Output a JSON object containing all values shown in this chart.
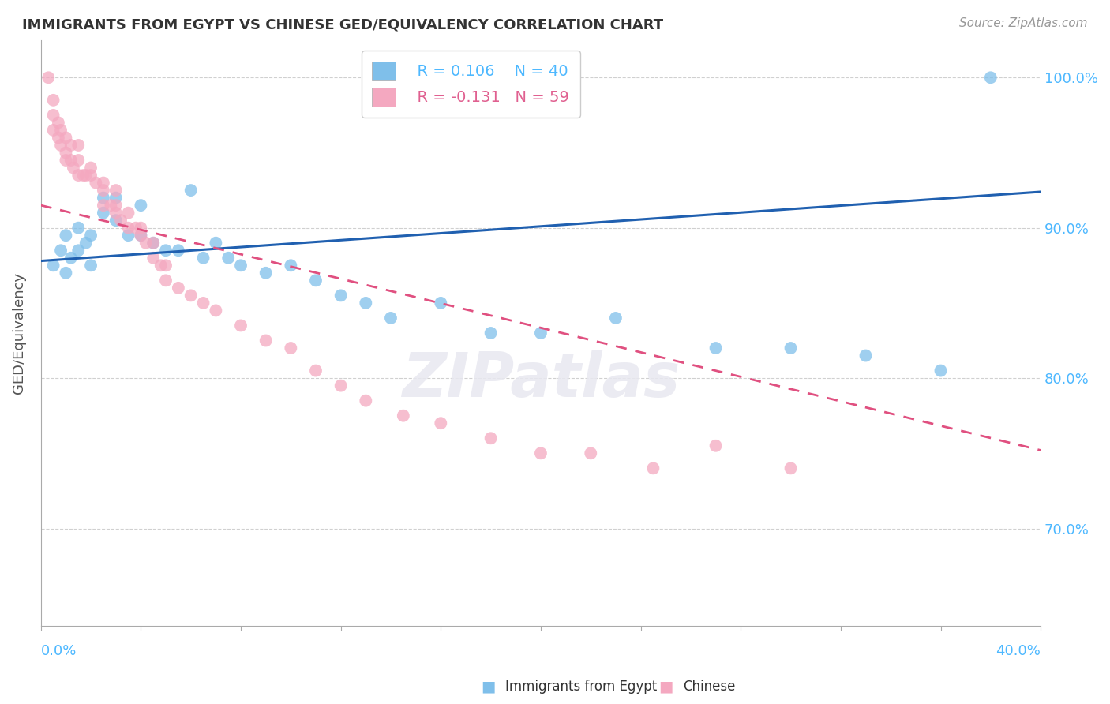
{
  "title": "IMMIGRANTS FROM EGYPT VS CHINESE GED/EQUIVALENCY CORRELATION CHART",
  "source": "Source: ZipAtlas.com",
  "ylabel": "GED/Equivalency",
  "legend_blue_r": "R = 0.106",
  "legend_blue_n": "N = 40",
  "legend_pink_r": "R = -0.131",
  "legend_pink_n": "N = 59",
  "legend_blue_label": "Immigrants from Egypt",
  "legend_pink_label": "Chinese",
  "xlim": [
    0.0,
    0.4
  ],
  "ylim": [
    0.635,
    1.025
  ],
  "yticks": [
    0.7,
    0.8,
    0.9,
    1.0
  ],
  "ytick_labels": [
    "70.0%",
    "80.0%",
    "90.0%",
    "100.0%"
  ],
  "blue_color": "#7fbfea",
  "pink_color": "#f4a8c0",
  "blue_line_color": "#2060b0",
  "pink_line_color": "#e05080",
  "background_color": "#ffffff",
  "grid_color": "#d0d0d0",
  "blue_scatter_x": [
    0.005,
    0.008,
    0.01,
    0.01,
    0.012,
    0.015,
    0.015,
    0.018,
    0.02,
    0.02,
    0.025,
    0.025,
    0.03,
    0.03,
    0.035,
    0.04,
    0.04,
    0.045,
    0.05,
    0.055,
    0.06,
    0.065,
    0.07,
    0.075,
    0.08,
    0.09,
    0.1,
    0.11,
    0.12,
    0.13,
    0.14,
    0.16,
    0.18,
    0.2,
    0.23,
    0.27,
    0.3,
    0.33,
    0.36,
    0.38
  ],
  "blue_scatter_y": [
    0.875,
    0.885,
    0.87,
    0.895,
    0.88,
    0.885,
    0.9,
    0.89,
    0.895,
    0.875,
    0.92,
    0.91,
    0.92,
    0.905,
    0.895,
    0.915,
    0.895,
    0.89,
    0.885,
    0.885,
    0.925,
    0.88,
    0.89,
    0.88,
    0.875,
    0.87,
    0.875,
    0.865,
    0.855,
    0.85,
    0.84,
    0.85,
    0.83,
    0.83,
    0.84,
    0.82,
    0.82,
    0.815,
    0.805,
    1.0
  ],
  "pink_scatter_x": [
    0.003,
    0.005,
    0.005,
    0.005,
    0.007,
    0.007,
    0.008,
    0.008,
    0.01,
    0.01,
    0.01,
    0.012,
    0.012,
    0.013,
    0.015,
    0.015,
    0.015,
    0.017,
    0.018,
    0.02,
    0.02,
    0.022,
    0.025,
    0.025,
    0.025,
    0.028,
    0.03,
    0.03,
    0.03,
    0.032,
    0.035,
    0.035,
    0.038,
    0.04,
    0.04,
    0.042,
    0.045,
    0.045,
    0.048,
    0.05,
    0.05,
    0.055,
    0.06,
    0.065,
    0.07,
    0.08,
    0.09,
    0.1,
    0.11,
    0.12,
    0.13,
    0.145,
    0.16,
    0.18,
    0.2,
    0.22,
    0.245,
    0.27,
    0.3
  ],
  "pink_scatter_y": [
    1.0,
    0.985,
    0.975,
    0.965,
    0.97,
    0.96,
    0.965,
    0.955,
    0.96,
    0.95,
    0.945,
    0.955,
    0.945,
    0.94,
    0.955,
    0.945,
    0.935,
    0.935,
    0.935,
    0.94,
    0.935,
    0.93,
    0.93,
    0.925,
    0.915,
    0.915,
    0.925,
    0.915,
    0.91,
    0.905,
    0.91,
    0.9,
    0.9,
    0.9,
    0.895,
    0.89,
    0.89,
    0.88,
    0.875,
    0.875,
    0.865,
    0.86,
    0.855,
    0.85,
    0.845,
    0.835,
    0.825,
    0.82,
    0.805,
    0.795,
    0.785,
    0.775,
    0.77,
    0.76,
    0.75,
    0.75,
    0.74,
    0.755,
    0.74
  ]
}
